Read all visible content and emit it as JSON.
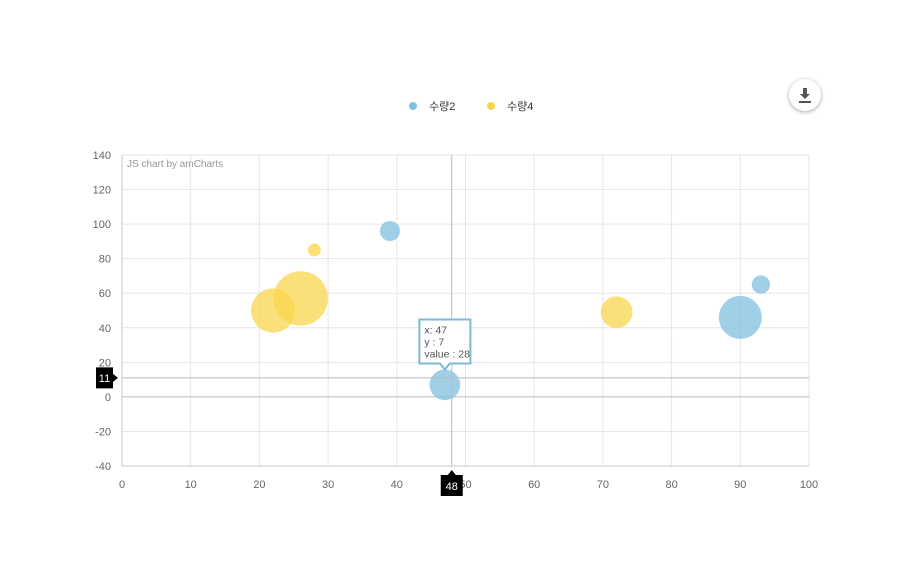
{
  "chart_data": {
    "type": "scatter",
    "variant": "bubble",
    "credit": "JS chart by amCharts",
    "xlim": [
      0,
      100
    ],
    "ylim": [
      -40,
      140
    ],
    "x_ticks": [
      0,
      10,
      20,
      30,
      40,
      50,
      60,
      70,
      80,
      90,
      100
    ],
    "y_ticks": [
      140,
      120,
      100,
      80,
      60,
      40,
      20,
      0,
      -20,
      -40
    ],
    "grid": true,
    "legend_position": "top-center",
    "series": [
      {
        "name": "수량2",
        "color": "#7fc0e0",
        "points": [
          {
            "x": 39,
            "y": 96,
            "value": 12
          },
          {
            "x": 47,
            "y": 7,
            "value": 28
          },
          {
            "x": 90,
            "y": 46,
            "value": 55
          },
          {
            "x": 93,
            "y": 65,
            "value": 10
          }
        ]
      },
      {
        "name": "수량4",
        "color": "#fad54d",
        "points": [
          {
            "x": 22,
            "y": 50,
            "value": 58
          },
          {
            "x": 26,
            "y": 57,
            "value": 88
          },
          {
            "x": 28,
            "y": 85,
            "value": 5
          },
          {
            "x": 72,
            "y": 49,
            "value": 30
          }
        ]
      }
    ],
    "tooltip": {
      "series": 0,
      "point": 1,
      "lines": [
        "x: 47",
        "y : 7",
        "value : 28"
      ]
    },
    "cursor": {
      "x_label": "48",
      "y_label": "11",
      "x_value": 48,
      "y_value": 11
    }
  },
  "toolbar": {
    "download_icon": "download-icon"
  }
}
